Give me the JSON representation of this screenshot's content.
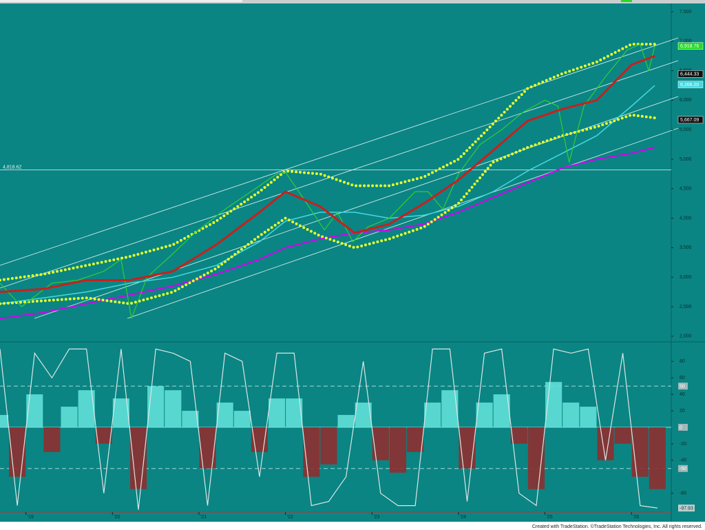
{
  "chart_data": [
    {
      "type": "line",
      "xlim": [
        2018.7,
        2026.46
      ],
      "ylim": [
        1916,
        7605
      ],
      "yticks": [
        {
          "value": 2000,
          "label": "2,000"
        },
        {
          "value": 2500,
          "label": "2,500"
        },
        {
          "value": 3000,
          "label": "3,000"
        },
        {
          "value": 3500,
          "label": "3,500"
        },
        {
          "value": 4000,
          "label": "4,000"
        },
        {
          "value": 4500,
          "label": "4,500"
        },
        {
          "value": 5000,
          "label": "5,000"
        },
        {
          "value": 5500,
          "label": "5,500"
        },
        {
          "value": 6000,
          "label": "6,000"
        },
        {
          "value": 6500,
          "label": "6,500"
        },
        {
          "value": 7000,
          "label": "7,000"
        },
        {
          "value": 7500,
          "label": "7,500"
        }
      ],
      "series": [
        {
          "color": "#d500f0",
          "width": 2,
          "x": [
            2018.7,
            2019.2,
            2019.7,
            2020.2,
            2020.7,
            2021.2,
            2021.7,
            2022.0,
            2022.4,
            2022.8,
            2023.2,
            2023.6,
            2024.0,
            2024.4,
            2024.8,
            2025.2,
            2025.6,
            2026.0,
            2026.27
          ],
          "values": [
            2300,
            2400,
            2550,
            2700,
            2850,
            3050,
            3300,
            3500,
            3650,
            3750,
            3800,
            3900,
            4100,
            4350,
            4600,
            4850,
            5000,
            5100,
            5200
          ]
        },
        {
          "color": "#45d8e0",
          "width": 1.5,
          "x": [
            2018.7,
            2019.2,
            2019.7,
            2020.2,
            2020.7,
            2021.2,
            2021.7,
            2022.0,
            2022.4,
            2022.8,
            2023.2,
            2023.6,
            2024.0,
            2024.4,
            2024.8,
            2025.2,
            2025.6,
            2026.0,
            2026.27
          ],
          "values": [
            2550,
            2650,
            2750,
            2900,
            3000,
            3200,
            3600,
            3950,
            4100,
            4100,
            4000,
            4050,
            4200,
            4450,
            4800,
            5100,
            5400,
            5900,
            6250
          ]
        },
        {
          "color": "#e8ff2a",
          "width": 4,
          "dotted": true,
          "x": [
            2018.7,
            2019.2,
            2019.7,
            2020.2,
            2020.7,
            2021.2,
            2021.7,
            2022.0,
            2022.4,
            2022.8,
            2023.2,
            2023.6,
            2024.0,
            2024.4,
            2024.8,
            2025.2,
            2025.6,
            2026.0,
            2026.27
          ],
          "values": [
            2950,
            3050,
            3200,
            3350,
            3550,
            3950,
            4450,
            4800,
            4750,
            4550,
            4550,
            4700,
            5000,
            5600,
            6200,
            6450,
            6650,
            6950,
            6950
          ]
        },
        {
          "color": "#e8ff2a",
          "width": 4,
          "dotted": true,
          "x": [
            2018.7,
            2019.2,
            2019.7,
            2020.2,
            2020.7,
            2021.2,
            2021.7,
            2022.0,
            2022.4,
            2022.8,
            2023.2,
            2023.6,
            2024.0,
            2024.4,
            2024.8,
            2025.2,
            2025.6,
            2026.0,
            2026.27
          ],
          "values": [
            2550,
            2600,
            2650,
            2550,
            2750,
            3150,
            3700,
            4000,
            3700,
            3500,
            3650,
            3850,
            4250,
            4950,
            5200,
            5400,
            5550,
            5750,
            5700
          ]
        },
        {
          "color": "#33cc33",
          "width": 1.2,
          "x": [
            2018.7,
            2018.95,
            2019.3,
            2019.6,
            2019.9,
            2020.1,
            2020.22,
            2020.4,
            2020.7,
            2020.95,
            2021.3,
            2021.6,
            2021.9,
            2022.0,
            2022.2,
            2022.45,
            2022.6,
            2022.78,
            2022.95,
            2023.2,
            2023.5,
            2023.65,
            2023.82,
            2024.0,
            2024.25,
            2024.5,
            2024.75,
            2025.0,
            2025.15,
            2025.28,
            2025.45,
            2025.7,
            2025.95,
            2026.1,
            2026.2,
            2026.27
          ],
          "values": [
            2900,
            2500,
            2900,
            2950,
            3100,
            3300,
            2300,
            3000,
            3400,
            3750,
            4150,
            4450,
            4750,
            4780,
            4350,
            3800,
            4100,
            3600,
            3850,
            4000,
            4450,
            4450,
            4150,
            4750,
            5250,
            5500,
            5800,
            6000,
            5900,
            4950,
            5900,
            6400,
            6850,
            6950,
            6500,
            6920
          ]
        },
        {
          "color": "#c8201e",
          "width": 3,
          "x": [
            2018.7,
            2019.2,
            2019.7,
            2020.2,
            2020.7,
            2021.2,
            2021.7,
            2022.0,
            2022.4,
            2022.8,
            2023.2,
            2023.6,
            2024.0,
            2024.4,
            2024.8,
            2025.2,
            2025.6,
            2026.0,
            2026.27
          ],
          "values": [
            2750,
            2800,
            2950,
            2950,
            3100,
            3550,
            4100,
            4450,
            4200,
            3750,
            3900,
            4250,
            4650,
            5150,
            5650,
            5850,
            6000,
            6600,
            6750
          ]
        }
      ],
      "reference_line": {
        "value": 4818.62,
        "label": "4,818.62"
      },
      "price_labels": [
        {
          "value": 6918.76,
          "label": "6,918.76",
          "color": "#22dd22"
        },
        {
          "value": 6444.33,
          "label": "6,444.33",
          "color": "#111111"
        },
        {
          "value": 6266.2,
          "label": "6,266.20",
          "color": "#45d8e0"
        },
        {
          "value": 5667.09,
          "label": "5,667.09",
          "color": "#111111"
        }
      ]
    },
    {
      "type": "bar",
      "xlim": [
        2018.7,
        2026.46
      ],
      "ylim": [
        -102,
        102
      ],
      "xticks": [
        {
          "value": 2019,
          "label": "'19"
        },
        {
          "value": 2020,
          "label": "'20"
        },
        {
          "value": 2021,
          "label": "'21"
        },
        {
          "value": 2022,
          "label": "'22"
        },
        {
          "value": 2023,
          "label": "'23"
        },
        {
          "value": 2024,
          "label": "'24"
        },
        {
          "value": 2025,
          "label": "'25"
        },
        {
          "value": 2026,
          "label": "'26"
        }
      ],
      "yticks": [
        80,
        60,
        40,
        20,
        -20,
        -40,
        -80
      ],
      "levels": [
        50,
        0,
        -50
      ],
      "x": [
        2018.7,
        2018.9,
        2019.1,
        2019.3,
        2019.5,
        2019.7,
        2019.9,
        2020.1,
        2020.3,
        2020.5,
        2020.7,
        2020.9,
        2021.1,
        2021.3,
        2021.5,
        2021.7,
        2021.9,
        2022.1,
        2022.3,
        2022.5,
        2022.7,
        2022.9,
        2023.1,
        2023.3,
        2023.5,
        2023.7,
        2023.9,
        2024.1,
        2024.3,
        2024.5,
        2024.7,
        2024.9,
        2025.1,
        2025.3,
        2025.5,
        2025.7,
        2025.9,
        2026.1,
        2026.3
      ],
      "series": [
        {
          "color": "#5fe0d8",
          "negative_color": "#8e2f2f",
          "values": [
            15,
            -60,
            40,
            -30,
            25,
            45,
            -20,
            35,
            -75,
            50,
            45,
            20,
            -50,
            30,
            20,
            -30,
            35,
            35,
            -60,
            -45,
            15,
            30,
            -40,
            -55,
            -30,
            30,
            45,
            -50,
            30,
            40,
            -20,
            -75,
            55,
            30,
            25,
            -40,
            -20,
            -60,
            -75
          ]
        },
        {
          "type": "line",
          "color": "#dde6e6",
          "values": [
            95,
            -95,
            90,
            60,
            95,
            95,
            -80,
            95,
            -100,
            95,
            90,
            80,
            -95,
            90,
            80,
            -60,
            90,
            90,
            -95,
            -90,
            -60,
            80,
            -80,
            -95,
            -95,
            95,
            95,
            -90,
            90,
            95,
            -80,
            -95,
            95,
            90,
            95,
            -40,
            90,
            -95,
            -97.93
          ]
        }
      ],
      "current_value": -97.93
    }
  ],
  "footer": "Created with TradeStation. ©TradeStation Technologies, Inc. All rights reserved."
}
